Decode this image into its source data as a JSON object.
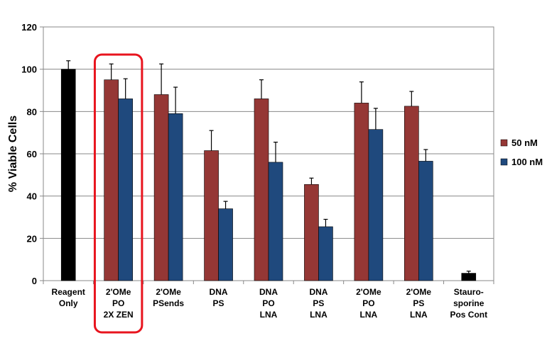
{
  "chart_data": {
    "type": "bar",
    "ylabel": "% Viable Cells",
    "xlabel": "",
    "ylim": [
      0,
      120
    ],
    "yticks": [
      0,
      20,
      40,
      60,
      80,
      100,
      120
    ],
    "grid": true,
    "legend_position": "right",
    "categories": [
      "Reagent\nOnly",
      "2'OMe\nPO\n2X ZEN",
      "2'OMe\nPSends",
      "DNA\nPS",
      "DNA\nPO\nLNA",
      "DNA\nPS\nLNA",
      "2'OMe\nPO\nLNA",
      "2'OMe\nPS\nLNA",
      "Stauro-\nsporine\nPos Cont"
    ],
    "series": [
      {
        "name": "50 nM",
        "color": "#953735",
        "values": [
          null,
          95,
          88,
          61.5,
          86,
          45.5,
          84,
          82.5,
          null
        ],
        "errors": [
          null,
          7.5,
          14.5,
          9.5,
          9,
          3,
          10,
          7,
          null
        ]
      },
      {
        "name": "100 nM",
        "color": "#1F497D",
        "values": [
          null,
          86,
          79,
          34,
          56,
          25.5,
          71.5,
          56.5,
          null
        ],
        "errors": [
          null,
          9.5,
          12.5,
          3.5,
          9.5,
          3.5,
          10,
          5.5,
          null
        ]
      }
    ],
    "controls": [
      {
        "category_index": 0,
        "value": 100,
        "error": 4,
        "color": "#000000"
      },
      {
        "category_index": 8,
        "value": 3.5,
        "error": 1,
        "color": "#000000"
      }
    ],
    "highlight": {
      "category_index": 1,
      "color": "#E8141E"
    }
  }
}
